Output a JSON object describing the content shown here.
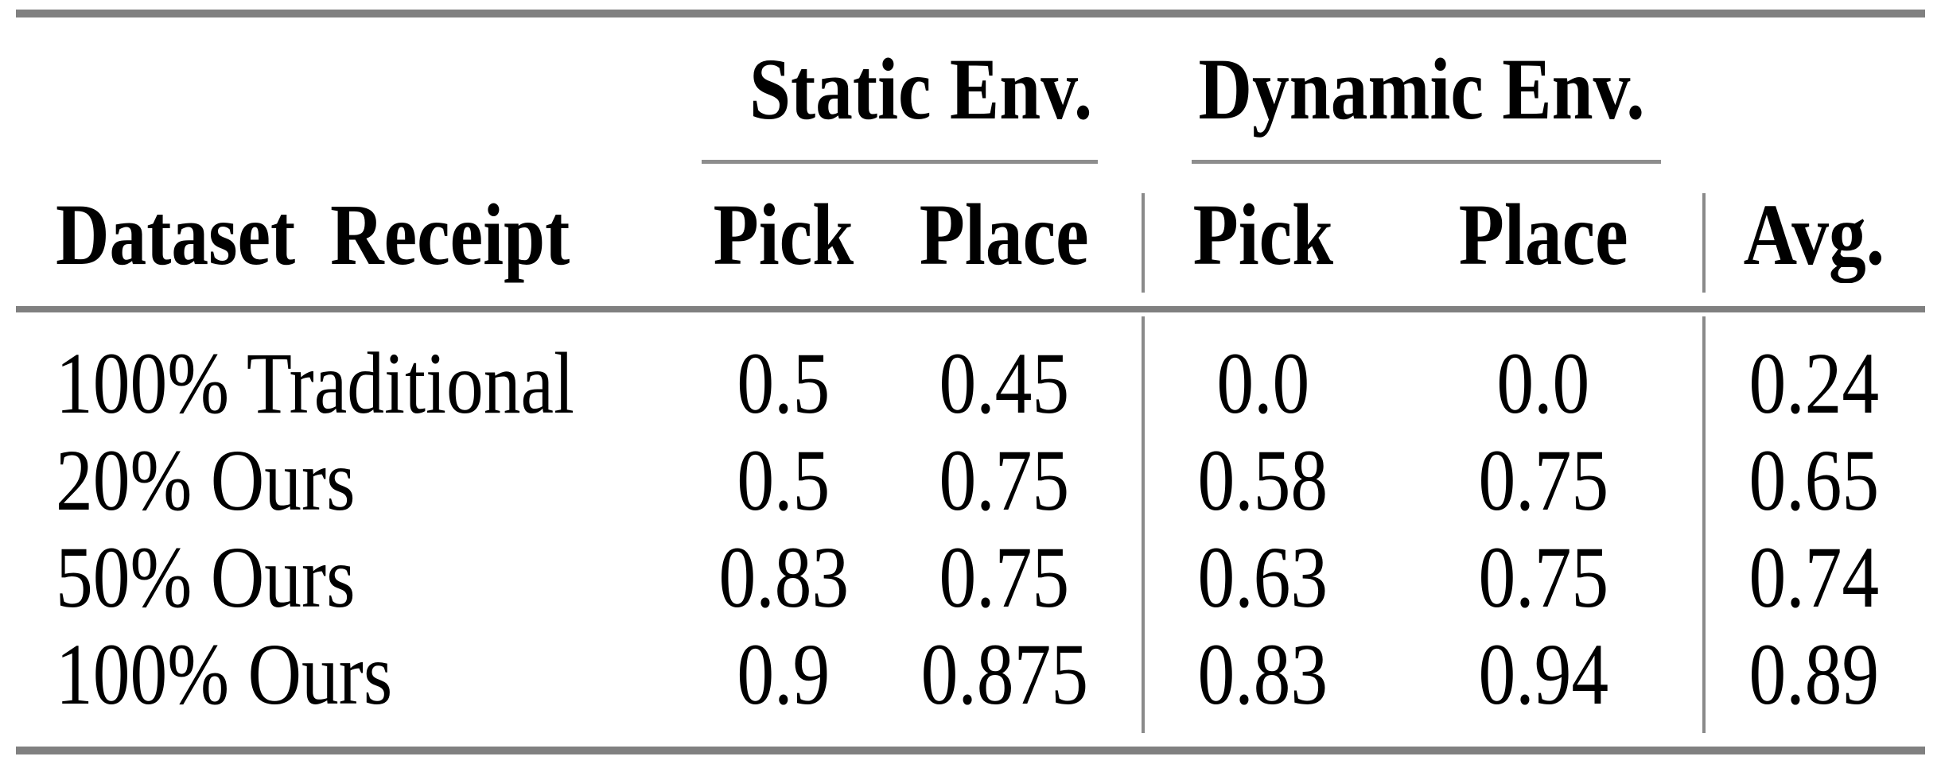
{
  "table": {
    "group_headers": [
      {
        "label": "Static Env."
      },
      {
        "label": "Dynamic Env."
      }
    ],
    "column_headers": [
      "Dataset Receipt",
      "Pick",
      "Place",
      "Pick",
      "Place",
      "Avg."
    ],
    "rows": [
      {
        "cells": [
          "100% Traditional",
          "0.5",
          "0.45",
          "0.0",
          "0.0",
          "0.24"
        ]
      },
      {
        "cells": [
          "20% Ours",
          "0.5",
          "0.75",
          "0.58",
          "0.75",
          "0.65"
        ]
      },
      {
        "cells": [
          "50% Ours",
          "0.83",
          "0.75",
          "0.63",
          "0.75",
          "0.74"
        ]
      },
      {
        "cells": [
          "100% Ours",
          "0.9",
          "0.875",
          "0.83",
          "0.94",
          "0.89"
        ]
      }
    ],
    "colors": {
      "rule_gray": "#808080",
      "text": "#000000",
      "background": "#ffffff"
    }
  },
  "chart_data": {
    "type": "table",
    "title": "",
    "column_groups": [
      {
        "label": "Static Env.",
        "columns": [
          "Pick",
          "Place"
        ]
      },
      {
        "label": "Dynamic Env.",
        "columns": [
          "Pick",
          "Place"
        ]
      }
    ],
    "columns": [
      "Dataset Receipt",
      "Static Pick",
      "Static Place",
      "Dynamic Pick",
      "Dynamic Place",
      "Avg."
    ],
    "rows": [
      [
        "100% Traditional",
        0.5,
        0.45,
        0.0,
        0.0,
        0.24
      ],
      [
        "20% Ours",
        0.5,
        0.75,
        0.58,
        0.75,
        0.65
      ],
      [
        "50% Ours",
        0.83,
        0.75,
        0.63,
        0.75,
        0.74
      ],
      [
        "100% Ours",
        0.9,
        0.875,
        0.83,
        0.94,
        0.89
      ]
    ]
  }
}
